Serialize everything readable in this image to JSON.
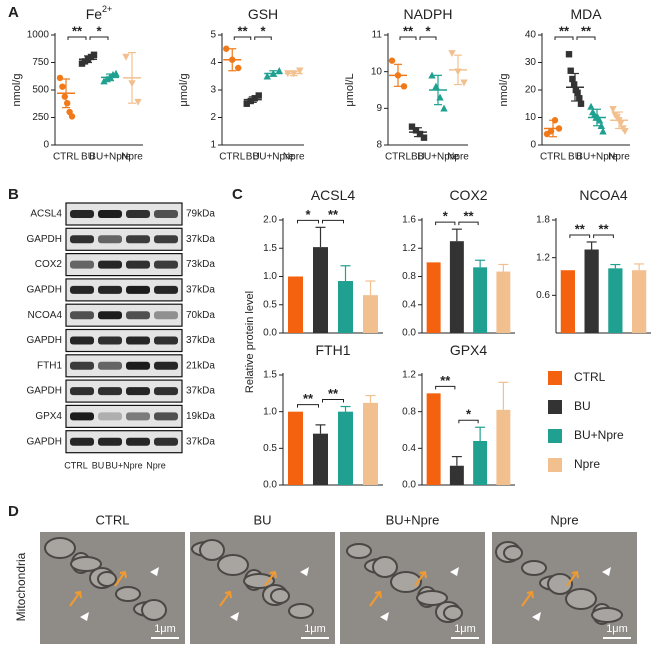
{
  "panels": {
    "a": "A",
    "b": "B",
    "c": "C",
    "d": "D"
  },
  "chart_data": [
    {
      "type": "dot",
      "title": "Fe",
      "title_superscript": "2+",
      "ylabel": "nmol/g",
      "categories": [
        "CTRL",
        "BU",
        "BU+Npre",
        "Npre"
      ],
      "ylim": [
        0,
        1000
      ],
      "yticks": [
        0,
        250,
        500,
        750,
        1000
      ],
      "groups": [
        {
          "color": "#f07a1a",
          "points": [
            610,
            530,
            440,
            380,
            300,
            260
          ],
          "mean": 470,
          "sd": 130
        },
        {
          "color": "#333333",
          "points": [
            740,
            760,
            780,
            800,
            820
          ],
          "mean": 780,
          "sd": 30
        },
        {
          "color": "#20a090",
          "points": [
            580,
            600,
            620,
            640,
            650
          ],
          "mean": 615,
          "sd": 30
        },
        {
          "color": "#f2c08f",
          "points": [
            800,
            560,
            390
          ],
          "mean": 610,
          "sd": 230
        }
      ],
      "significance": [
        {
          "from": 0,
          "to": 1,
          "label": "**"
        },
        {
          "from": 1,
          "to": 2,
          "label": "*"
        }
      ]
    },
    {
      "type": "dot",
      "title": "GSH",
      "ylabel": "μmol/g",
      "categories": [
        "CTRL",
        "BU",
        "BU+Npre",
        "Npre"
      ],
      "ylim": [
        1,
        5
      ],
      "yticks": [
        1,
        2,
        3,
        4,
        5
      ],
      "groups": [
        {
          "color": "#f07a1a",
          "points": [
            4.5,
            4.1,
            3.8
          ],
          "mean": 4.1,
          "sd": 0.4
        },
        {
          "color": "#333333",
          "points": [
            2.5,
            2.6,
            2.7,
            2.8
          ],
          "mean": 2.65,
          "sd": 0.1
        },
        {
          "color": "#20a090",
          "points": [
            3.5,
            3.6,
            3.7
          ],
          "mean": 3.6,
          "sd": 0.1
        },
        {
          "color": "#f2c08f",
          "points": [
            3.6,
            3.6,
            3.7
          ],
          "mean": 3.6,
          "sd": 0.08
        }
      ],
      "significance": [
        {
          "from": 0,
          "to": 1,
          "label": "**"
        },
        {
          "from": 1,
          "to": 2,
          "label": "*"
        }
      ]
    },
    {
      "type": "dot",
      "title": "NADPH",
      "ylabel": "μmol/L",
      "categories": [
        "CTRL",
        "BU",
        "BU+Npre",
        "Npre"
      ],
      "ylim": [
        8,
        11
      ],
      "yticks": [
        8,
        9,
        10,
        11
      ],
      "groups": [
        {
          "color": "#f07a1a",
          "points": [
            10.3,
            9.9,
            9.6
          ],
          "mean": 9.9,
          "sd": 0.3
        },
        {
          "color": "#333333",
          "points": [
            8.5,
            8.4,
            8.3,
            8.2
          ],
          "mean": 8.35,
          "sd": 0.12
        },
        {
          "color": "#20a090",
          "points": [
            9.9,
            9.6,
            9.3,
            9.0
          ],
          "mean": 9.5,
          "sd": 0.4
        },
        {
          "color": "#f2c08f",
          "points": [
            10.5,
            10.0,
            9.7
          ],
          "mean": 10.05,
          "sd": 0.4
        }
      ],
      "significance": [
        {
          "from": 0,
          "to": 1,
          "label": "**"
        },
        {
          "from": 1,
          "to": 2,
          "label": "*"
        }
      ]
    },
    {
      "type": "dot",
      "title": "MDA",
      "ylabel": "nmol/g",
      "categories": [
        "CTRL",
        "BU",
        "BU+Npre",
        "Npre"
      ],
      "ylim": [
        0,
        40
      ],
      "yticks": [
        0,
        10,
        20,
        30,
        40
      ],
      "groups": [
        {
          "color": "#f07a1a",
          "points": [
            4,
            5,
            9,
            6
          ],
          "mean": 6,
          "sd": 3
        },
        {
          "color": "#333333",
          "points": [
            33,
            27,
            24,
            22,
            20,
            19,
            17,
            15
          ],
          "mean": 21,
          "sd": 5
        },
        {
          "color": "#20a090",
          "points": [
            14,
            12,
            11,
            10,
            10,
            9,
            7,
            5
          ],
          "mean": 10,
          "sd": 3
        },
        {
          "color": "#f2c08f",
          "points": [
            13,
            11,
            10,
            9,
            8,
            6,
            5
          ],
          "mean": 9,
          "sd": 3
        }
      ],
      "significance": [
        {
          "from": 0,
          "to": 1,
          "label": "**"
        },
        {
          "from": 1,
          "to": 2,
          "label": "**"
        }
      ]
    },
    {
      "type": "bar",
      "title": "ACSL4",
      "ylim": [
        0,
        2.0
      ],
      "yticks": [
        {
          "value": 0,
          "label": "0.0"
        },
        0.5,
        {
          "value": 1,
          "label": "1.0"
        },
        1.5,
        {
          "value": 2,
          "label": "2.0"
        }
      ],
      "values": [
        1.0,
        1.52,
        0.92,
        0.67
      ],
      "errors": [
        0,
        0.35,
        0.27,
        0.25
      ],
      "significance": [
        {
          "from": 0,
          "to": 1,
          "label": "*"
        },
        {
          "from": 1,
          "to": 2,
          "label": "**"
        }
      ]
    },
    {
      "type": "bar",
      "title": "COX2",
      "ylim": [
        0,
        1.6
      ],
      "yticks": [
        {
          "value": 0,
          "label": "0.0"
        },
        0.4,
        0.8,
        1.2,
        1.6
      ],
      "values": [
        1.0,
        1.3,
        0.93,
        0.87
      ],
      "errors": [
        0,
        0.17,
        0.1,
        0.1
      ],
      "significance": [
        {
          "from": 0,
          "to": 1,
          "label": "*"
        },
        {
          "from": 1,
          "to": 2,
          "label": "**"
        }
      ]
    },
    {
      "type": "bar",
      "title": "NCOA4",
      "ylim": [
        0,
        1.8
      ],
      "yticks": [
        0.6,
        1.2,
        1.8
      ],
      "values": [
        1.0,
        1.33,
        1.03,
        1.0
      ],
      "errors": [
        0,
        0.12,
        0.06,
        0.1
      ],
      "significance": [
        {
          "from": 0,
          "to": 1,
          "label": "**"
        },
        {
          "from": 1,
          "to": 2,
          "label": "**"
        }
      ]
    },
    {
      "type": "bar",
      "title": "FTH1",
      "ylim": [
        0,
        1.5
      ],
      "yticks": [
        {
          "value": 0,
          "label": "0.0"
        },
        0.5,
        {
          "value": 1,
          "label": "1.0"
        },
        1.5
      ],
      "values": [
        1.0,
        0.7,
        1.0,
        1.12
      ],
      "errors": [
        0,
        0.12,
        0.07,
        0.1
      ],
      "significance": [
        {
          "from": 0,
          "to": 1,
          "label": "**"
        },
        {
          "from": 1,
          "to": 2,
          "label": "**"
        }
      ]
    },
    {
      "type": "bar",
      "title": "GPX4",
      "ylim": [
        0,
        1.2
      ],
      "yticks": [
        {
          "value": 0,
          "label": "0.0"
        },
        0.4,
        0.8,
        1.2
      ],
      "values": [
        1.0,
        0.21,
        0.48,
        0.82
      ],
      "errors": [
        0,
        0.1,
        0.15,
        0.3
      ],
      "significance": [
        {
          "from": 0,
          "to": 1,
          "label": "**"
        },
        {
          "from": 1,
          "to": 2,
          "label": "*"
        }
      ]
    }
  ],
  "panel_c": {
    "ylabel": "Relative protein level",
    "legend": [
      {
        "name": "CTRL",
        "color": "#f5620f"
      },
      {
        "name": "BU",
        "color": "#333333"
      },
      {
        "name": "BU+Npre",
        "color": "#20a090"
      },
      {
        "name": "Npre",
        "color": "#f2c08f"
      }
    ]
  },
  "blots": {
    "lanes": [
      "CTRL",
      "BU",
      "BU+Npre",
      "Npre"
    ],
    "rows": [
      {
        "protein": "ACSL4",
        "size": "79kDa"
      },
      {
        "protein": "GAPDH",
        "size": "37kDa"
      },
      {
        "protein": "COX2",
        "size": "73kDa"
      },
      {
        "protein": "GAPDH",
        "size": "37kDa"
      },
      {
        "protein": "NCOA4",
        "size": "70kDa"
      },
      {
        "protein": "GAPDH",
        "size": "37kDa"
      },
      {
        "protein": "FTH1",
        "size": "21kDa"
      },
      {
        "protein": "GAPDH",
        "size": "37kDa"
      },
      {
        "protein": "GPX4",
        "size": "19kDa"
      },
      {
        "protein": "GAPDH",
        "size": "37kDa"
      }
    ]
  },
  "micrographs": {
    "row_label": "Mitochondria",
    "columns": [
      {
        "label": "CTRL",
        "scale": "1μm"
      },
      {
        "label": "BU",
        "scale": "1μm"
      },
      {
        "label": "BU+Npre",
        "scale": "1μm"
      },
      {
        "label": "Npre",
        "scale": "1μm"
      }
    ]
  }
}
